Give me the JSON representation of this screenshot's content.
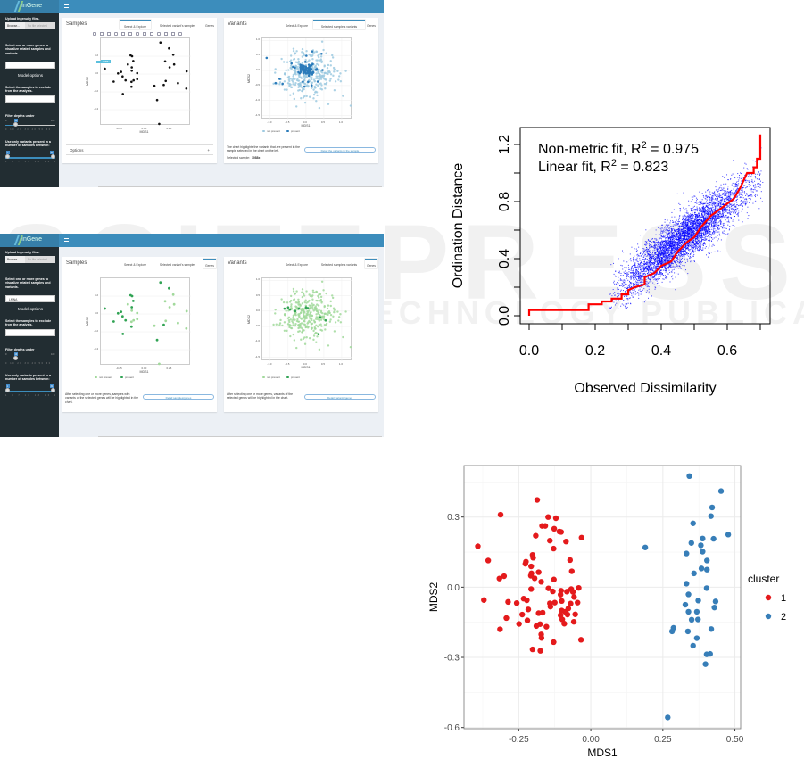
{
  "watermark": {
    "main": "SCITEPRESS",
    "sub": "SCIENCE AND TECHNOLOGY PUBLICATIONS"
  },
  "screenshots": [
    {
      "app_name": "InGene",
      "sidebar": {
        "upload_label": "Upload Ingenuity files.",
        "browse_label": "Browse...",
        "file_placeholder": "No file selected",
        "genes_label": "Select one or more genes to visualize related samples and variants.",
        "genes_value": "",
        "model_options": "Model options",
        "exclude_label": "Select the samples to exclude from the analysis.",
        "exclude_value": "",
        "filter_label": "Filter depths under",
        "filter_min": "0",
        "filter_max": "100",
        "filter_value": "10",
        "filter_ticks": "0 10 20 30 40 50 60 70 80 90 100",
        "range_label": "Use only variants present in a number of samples between:",
        "range_low": "1",
        "range_high": "31",
        "range_ticks": "1 4 7 10 13 16 19 22 25 28 31"
      },
      "samples": {
        "title": "Samples",
        "tabs": [
          "Select & Explore",
          "Selected variant's samples",
          "Genes"
        ],
        "active_tab": 0,
        "xlabel": "MDS1",
        "ylabel": "MDS2",
        "xticks": [
          -0.25,
          0.0,
          0.25
        ],
        "xtick_labels": [
          "-0.25",
          "0.00",
          "0.25"
        ],
        "yticks": [
          0.2,
          0.0,
          -0.2,
          -0.4
        ],
        "ytick_labels": [
          "0.2",
          "0.0",
          "-0.2",
          "-0.4"
        ],
        "tooltip": "1088x",
        "options_label": "Options",
        "options_toggle": "+"
      },
      "variants": {
        "title": "Variants",
        "tabs": [
          "Select & Explore",
          "Selected sample's variants",
          "Genes"
        ],
        "active_tab": 1,
        "xlabel": "MDS1",
        "ylabel": "MDS2",
        "xticks": [
          -1.0,
          -0.5,
          0.0,
          0.5,
          1.0
        ],
        "xtick_labels": [
          "-1.0",
          "-0.5",
          "0.0",
          "0.5",
          "1.0"
        ],
        "yticks": [
          1.0,
          0.5,
          0.0,
          -0.5,
          -1.0,
          -1.5
        ],
        "ytick_labels": [
          "1.0",
          "0.5",
          "0.0",
          "-0.5",
          "-1.0",
          "-1.5"
        ],
        "legend": [
          "not present",
          "present"
        ],
        "description": "The chart highlights the variants that are present in the sample selected in the chart on the left.",
        "button": "Detail the variants in the sample",
        "selected_label": "Selected sample:",
        "selected_value": "1088x"
      },
      "colors": {
        "sample": "#111111",
        "absent": "#9ecae1",
        "present": "#2b7bba"
      }
    },
    {
      "app_name": "InGene",
      "sidebar": {
        "upload_label": "Upload Ingenuity files.",
        "browse_label": "Browse...",
        "file_placeholder": "No file selected",
        "genes_label": "Select one or more genes to visualize related samples and variants.",
        "genes_value": "LMNA",
        "model_options": "Model options",
        "exclude_label": "Select the samples to exclude from the analysis.",
        "exclude_value": "",
        "filter_label": "Filter depths under",
        "filter_min": "0",
        "filter_max": "100",
        "filter_value": "10",
        "filter_ticks": "0 10 20 30 40 50 60 70 80 90 100",
        "range_label": "Use only variants present in a number of samples between:",
        "range_low": "1",
        "range_high": "31",
        "range_ticks": "1 4 7 10 13 16 19 22 25 28 31"
      },
      "samples": {
        "title": "Samples",
        "tabs": [
          "Select & Explore",
          "Selected variant's samples",
          "Genes"
        ],
        "active_tab": 2,
        "xlabel": "MDS1",
        "ylabel": "MDS2",
        "xticks": [
          -0.25,
          0.0,
          0.25
        ],
        "xtick_labels": [
          "-0.25",
          "0.00",
          "0.25"
        ],
        "yticks": [
          0.2,
          0.0,
          -0.2,
          -0.4
        ],
        "ytick_labels": [
          "0.2",
          "0.0",
          "-0.2",
          "-0.4"
        ],
        "legend": [
          "not present",
          "present"
        ],
        "description": "After selecting one or more genes, samples with variants of the selected genes will be highlighted in the chart.",
        "button": "Detail samples/genes"
      },
      "variants": {
        "title": "Variants",
        "tabs": [
          "Select & Explore",
          "Selected sample's variants",
          "Genes"
        ],
        "active_tab": 2,
        "xlabel": "MDS1",
        "ylabel": "MDS2",
        "xticks": [
          -1.0,
          -0.5,
          0.0,
          0.5,
          1.0
        ],
        "xtick_labels": [
          "-1.0",
          "-0.5",
          "0.0",
          "0.5",
          "1.0"
        ],
        "yticks": [
          1.0,
          0.5,
          0.0,
          -0.5,
          -1.0,
          -1.5
        ],
        "ytick_labels": [
          "1.0",
          "0.5",
          "0.0",
          "-0.5",
          "-1.0",
          "-1.5"
        ],
        "legend": [
          "not present",
          "present"
        ],
        "description": "After selecting one or more genes, variants of the selected genes will be highlighted in the chart.",
        "button": "Detail variants/genes"
      },
      "colors": {
        "sample": "#a1d99b",
        "absent": "#a1d99b",
        "present": "#31a354"
      }
    }
  ],
  "sample_points": [
    [
      0.155,
      0.353
    ],
    [
      0.241,
      0.288
    ],
    [
      0.283,
      0.217
    ],
    [
      -0.143,
      0.21
    ],
    [
      -0.128,
      0.2
    ],
    [
      -0.116,
      0.146
    ],
    [
      0.202,
      0.142
    ],
    [
      0.292,
      0.108
    ],
    [
      -0.17,
      0.108
    ],
    [
      -0.131,
      0.075
    ],
    [
      0.247,
      0.075
    ],
    [
      -0.131,
      0.037
    ],
    [
      -0.077,
      0.01
    ],
    [
      -0.238,
      0.024
    ],
    [
      -0.268,
      0.007
    ],
    [
      0.417,
      0.031
    ],
    [
      -0.223,
      -0.027
    ],
    [
      -0.113,
      -0.071
    ],
    [
      -0.077,
      -0.058
    ],
    [
      -0.193,
      -0.071
    ],
    [
      -0.312,
      -0.085
    ],
    [
      -0.134,
      -0.088
    ],
    [
      0.208,
      -0.078
    ],
    [
      0.33,
      -0.102
    ],
    [
      0.188,
      -0.122
    ],
    [
      0.095,
      -0.132
    ],
    [
      -0.134,
      -0.142
    ],
    [
      0.414,
      -0.163
    ],
    [
      -0.22,
      -0.224
    ],
    [
      0.122,
      -0.292
    ],
    [
      0.143,
      -0.559
    ],
    [
      -0.4,
      0.06
    ]
  ],
  "sample_present_genes": [
    3,
    4,
    5,
    9,
    13,
    14,
    16,
    19,
    20,
    26,
    28,
    29,
    31,
    0,
    1,
    24
  ],
  "chart_data": [
    {
      "type": "scatter",
      "title": "",
      "xlabel": "Observed Dissimilarity",
      "ylabel": "Ordination Distance",
      "xlim": [
        0,
        0.7
      ],
      "ylim": [
        0,
        1.27
      ],
      "xticks": [
        0.0,
        0.1,
        0.2,
        0.3,
        0.4,
        0.5,
        0.6,
        0.7
      ],
      "xtick_labels": [
        "0.0",
        "0.2",
        "0.4",
        "0.6"
      ],
      "yticks": [
        0.0,
        0.2,
        0.4,
        0.6,
        0.8,
        1.0,
        1.2
      ],
      "ytick_labels": [
        "0.0",
        "0.4",
        "0.8",
        "1.2"
      ],
      "annotations": [
        "Non-metric fit, R² = 0.975",
        "Linear fit, R² = 0.823"
      ],
      "annotation_parts": [
        {
          "prefix": "Non-metric fit, R",
          "sup": "2",
          "suffix": " = 0.975"
        },
        {
          "prefix": "Linear fit, R",
          "sup": "2",
          "suffix": " = 0.823"
        }
      ],
      "scatter_model": {
        "n": 5000,
        "x_mean": 0.47,
        "x_sd": 0.1,
        "slope": 1.75,
        "intercept": -0.27,
        "noise_sd": 0.085
      },
      "step_fit": [
        [
          0,
          0
        ],
        [
          0,
          0.04
        ],
        [
          0.18,
          0.04
        ],
        [
          0.18,
          0.08
        ],
        [
          0.22,
          0.08
        ],
        [
          0.22,
          0.1
        ],
        [
          0.25,
          0.1
        ],
        [
          0.25,
          0.12
        ],
        [
          0.28,
          0.12
        ],
        [
          0.28,
          0.15
        ],
        [
          0.3,
          0.15
        ],
        [
          0.3,
          0.18
        ],
        [
          0.32,
          0.2
        ],
        [
          0.35,
          0.22
        ],
        [
          0.35,
          0.27
        ],
        [
          0.38,
          0.3
        ],
        [
          0.4,
          0.35
        ],
        [
          0.43,
          0.38
        ],
        [
          0.45,
          0.45
        ],
        [
          0.48,
          0.52
        ],
        [
          0.5,
          0.55
        ],
        [
          0.52,
          0.62
        ],
        [
          0.55,
          0.7
        ],
        [
          0.58,
          0.75
        ],
        [
          0.62,
          0.82
        ],
        [
          0.64,
          0.9
        ],
        [
          0.66,
          1.0
        ],
        [
          0.68,
          1.0
        ],
        [
          0.68,
          1.04
        ],
        [
          0.69,
          1.04
        ],
        [
          0.69,
          1.1
        ],
        [
          0.7,
          1.1
        ],
        [
          0.7,
          1.27
        ]
      ],
      "colors": {
        "points": "#0000ff",
        "fit": "#ff0000"
      }
    },
    {
      "type": "scatter",
      "title": "",
      "xlabel": "MDS1",
      "ylabel": "MDS2",
      "xlim": [
        -0.44,
        0.52
      ],
      "ylim": [
        -0.605,
        0.52
      ],
      "xticks": [
        -0.25,
        0.0,
        0.25,
        0.5
      ],
      "xtick_labels": [
        "-0.25",
        "0.00",
        "0.25",
        "0.50"
      ],
      "yticks": [
        0.3,
        0.0,
        -0.3,
        -0.6
      ],
      "ytick_labels": [
        "0.3",
        "0.0",
        "-0.3",
        "-0.6"
      ],
      "grid": true,
      "legend": {
        "title": "cluster",
        "position": "right",
        "entries": [
          "1",
          "2"
        ]
      },
      "series": [
        {
          "name": "1",
          "color": "#e41a1c",
          "points": [
            [
              -0.392,
              0.175
            ],
            [
              -0.356,
              0.114
            ],
            [
              -0.313,
              0.31
            ],
            [
              -0.317,
              0.037
            ],
            [
              -0.301,
              0.047
            ],
            [
              -0.371,
              -0.055
            ],
            [
              -0.287,
              -0.063
            ],
            [
              -0.257,
              -0.068
            ],
            [
              -0.293,
              -0.132
            ],
            [
              -0.315,
              -0.18
            ],
            [
              -0.249,
              -0.157
            ],
            [
              -0.238,
              -0.117
            ],
            [
              -0.233,
              -0.049
            ],
            [
              -0.222,
              -0.056
            ],
            [
              -0.217,
              -0.095
            ],
            [
              -0.22,
              -0.142
            ],
            [
              -0.227,
              0.1
            ],
            [
              -0.225,
              0.109
            ],
            [
              -0.207,
              0.089
            ],
            [
              -0.202,
              0.138
            ],
            [
              -0.2,
              0.126
            ],
            [
              -0.206,
              0.059
            ],
            [
              -0.208,
              0.049
            ],
            [
              -0.195,
              0.038
            ],
            [
              -0.181,
              0.064
            ],
            [
              -0.172,
              0.023
            ],
            [
              -0.207,
              -0.008
            ],
            [
              -0.186,
              0.373
            ],
            [
              -0.191,
              0.22
            ],
            [
              -0.169,
              0.262
            ],
            [
              -0.158,
              0.262
            ],
            [
              -0.148,
              0.3
            ],
            [
              -0.121,
              0.295
            ],
            [
              -0.127,
              0.25
            ],
            [
              -0.109,
              0.238
            ],
            [
              -0.103,
              0.236
            ],
            [
              -0.142,
              0.199
            ],
            [
              -0.086,
              0.195
            ],
            [
              -0.129,
              0.165
            ],
            [
              -0.032,
              0.212
            ],
            [
              -0.072,
              0.116
            ],
            [
              -0.066,
              0.068
            ],
            [
              -0.128,
              0.033
            ],
            [
              -0.147,
              -0.005
            ],
            [
              -0.132,
              -0.018
            ],
            [
              -0.103,
              -0.015
            ],
            [
              -0.083,
              -0.019
            ],
            [
              -0.068,
              -0.008
            ],
            [
              -0.062,
              -0.02
            ],
            [
              -0.042,
              -0.003
            ],
            [
              -0.105,
              -0.032
            ],
            [
              -0.058,
              -0.042
            ],
            [
              -0.142,
              -0.069
            ],
            [
              -0.125,
              -0.066
            ],
            [
              -0.101,
              -0.059
            ],
            [
              -0.07,
              -0.07
            ],
            [
              -0.046,
              -0.066
            ],
            [
              -0.14,
              -0.083
            ],
            [
              -0.181,
              -0.111
            ],
            [
              -0.167,
              -0.109
            ],
            [
              -0.101,
              -0.1
            ],
            [
              -0.089,
              -0.105
            ],
            [
              -0.078,
              -0.091
            ],
            [
              -0.081,
              -0.117
            ],
            [
              -0.105,
              -0.12
            ],
            [
              -0.099,
              -0.138
            ],
            [
              -0.092,
              -0.156
            ],
            [
              -0.054,
              -0.116
            ],
            [
              -0.059,
              -0.148
            ],
            [
              -0.189,
              -0.166
            ],
            [
              -0.176,
              -0.158
            ],
            [
              -0.154,
              -0.169
            ],
            [
              -0.172,
              -0.202
            ],
            [
              -0.171,
              -0.217
            ],
            [
              -0.129,
              -0.235
            ],
            [
              -0.202,
              -0.266
            ],
            [
              -0.175,
              -0.272
            ],
            [
              -0.034,
              -0.225
            ]
          ]
        },
        {
          "name": "2",
          "color": "#377eb8",
          "points": [
            [
              0.342,
              0.475
            ],
            [
              0.452,
              0.411
            ],
            [
              0.421,
              0.341
            ],
            [
              0.417,
              0.304
            ],
            [
              0.355,
              0.273
            ],
            [
              0.477,
              0.225
            ],
            [
              0.426,
              0.207
            ],
            [
              0.388,
              0.208
            ],
            [
              0.349,
              0.189
            ],
            [
              0.382,
              0.179
            ],
            [
              0.388,
              0.152
            ],
            [
              0.189,
              0.17
            ],
            [
              0.332,
              0.144
            ],
            [
              0.403,
              0.114
            ],
            [
              0.384,
              0.08
            ],
            [
              0.403,
              0.075
            ],
            [
              0.358,
              0.059
            ],
            [
              0.332,
              0.015
            ],
            [
              0.402,
              -0.004
            ],
            [
              0.339,
              -0.031
            ],
            [
              0.373,
              -0.057
            ],
            [
              0.433,
              -0.061
            ],
            [
              0.328,
              -0.075
            ],
            [
              0.429,
              -0.087
            ],
            [
              0.339,
              -0.105
            ],
            [
              0.368,
              -0.105
            ],
            [
              0.35,
              -0.139
            ],
            [
              0.372,
              -0.138
            ],
            [
              0.287,
              -0.174
            ],
            [
              0.282,
              -0.189
            ],
            [
              0.337,
              -0.189
            ],
            [
              0.418,
              -0.179
            ],
            [
              0.368,
              -0.218
            ],
            [
              0.355,
              -0.25
            ],
            [
              0.402,
              -0.287
            ],
            [
              0.414,
              -0.285
            ],
            [
              0.398,
              -0.329
            ],
            [
              0.267,
              -0.557
            ]
          ]
        }
      ]
    }
  ]
}
